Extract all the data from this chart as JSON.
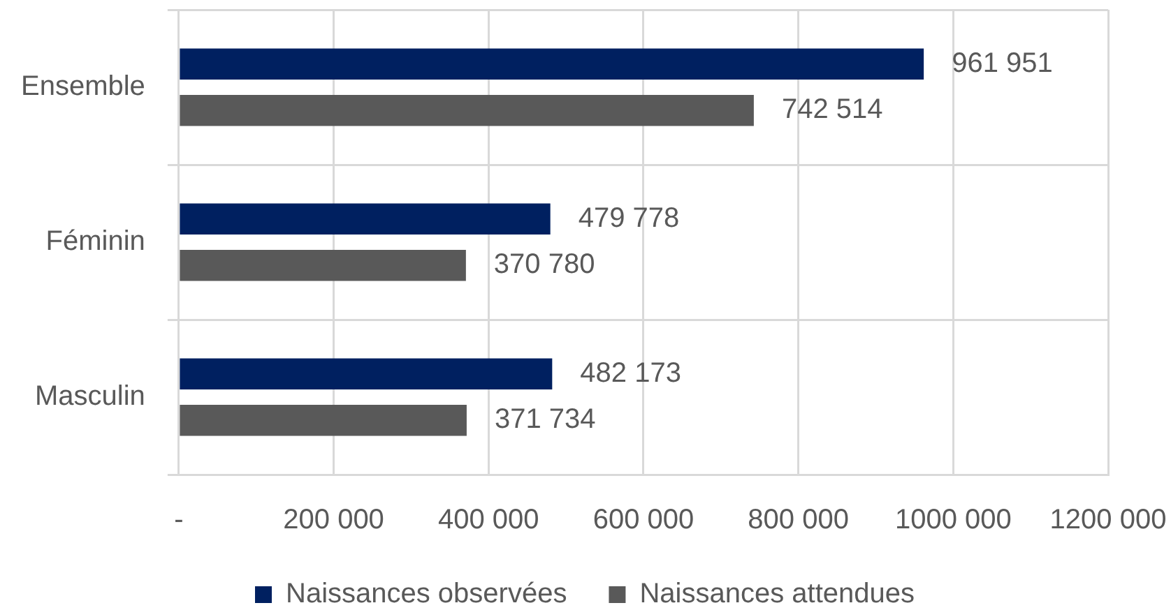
{
  "chart_data": {
    "type": "bar",
    "orientation": "horizontal",
    "categories": [
      "Ensemble",
      "Féminin",
      "Masculin"
    ],
    "series": [
      {
        "name": "Naissances observées",
        "color": "#002060",
        "values": [
          961951,
          479778,
          482173
        ],
        "value_labels": [
          "961 951",
          "479 778",
          "482 173"
        ]
      },
      {
        "name": "Naissances attendues",
        "color": "#595959",
        "values": [
          742514,
          370780,
          371734
        ],
        "value_labels": [
          "742 514",
          "370 780",
          "371 734"
        ]
      }
    ],
    "xlim": [
      0,
      1200000
    ],
    "xticks": [
      {
        "value": 0,
        "label": "-"
      },
      {
        "value": 200000,
        "label": "200 000"
      },
      {
        "value": 400000,
        "label": "400 000"
      },
      {
        "value": 600000,
        "label": "600 000"
      },
      {
        "value": 800000,
        "label": "800 000"
      },
      {
        "value": 1000000,
        "label": "1000 000"
      },
      {
        "value": 1200000,
        "label": "1200 000"
      }
    ],
    "grid": true,
    "legend": "bottom"
  }
}
